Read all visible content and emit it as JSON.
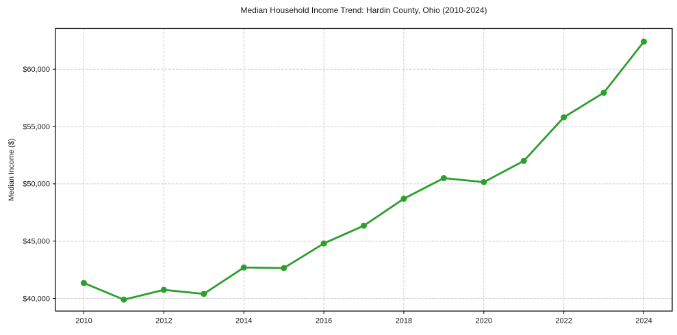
{
  "figure": {
    "background": "#ffffff"
  },
  "chart_data": {
    "type": "line",
    "title": "Median Household Income Trend: Hardin County, Ohio (2010-2024)",
    "xlabel": "",
    "ylabel": "Median Income ($)",
    "x": [
      2010,
      2011,
      2012,
      2013,
      2014,
      2015,
      2016,
      2017,
      2018,
      2019,
      2020,
      2021,
      2022,
      2023,
      2024
    ],
    "values": [
      41350,
      39900,
      40750,
      40400,
      42700,
      42650,
      44800,
      46350,
      48700,
      50500,
      50150,
      52000,
      55800,
      57950,
      62400
    ],
    "xlim": [
      2009.29,
      2024.71
    ],
    "ylim": [
      38900,
      63560
    ],
    "xticks": [
      2010,
      2012,
      2014,
      2016,
      2018,
      2020,
      2022,
      2024
    ],
    "xtick_labels": [
      "2010",
      "2012",
      "2014",
      "2016",
      "2018",
      "2020",
      "2022",
      "2024"
    ],
    "yticks": [
      40000,
      45000,
      50000,
      55000,
      60000
    ],
    "ytick_labels": [
      "$40,000",
      "$45,000",
      "$50,000",
      "$55,000",
      "$60,000"
    ],
    "grid": true,
    "legend": null,
    "line_color": "#2ca02c",
    "marker": "circle",
    "grid_color": "#d0d0d0",
    "axis_color": "#000000",
    "text_color": "#1a1a1a"
  }
}
